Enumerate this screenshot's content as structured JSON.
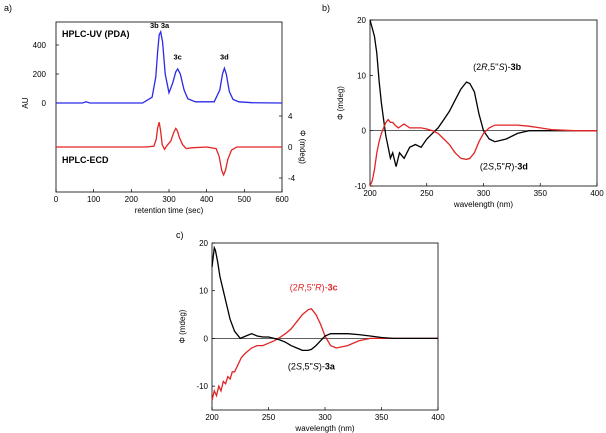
{
  "figure": {
    "panel_labels": [
      "a)",
      "b)",
      "c)"
    ]
  },
  "chart_data": [
    {
      "id": "a",
      "type": "line",
      "title_top": "HPLC-UV (PDA)",
      "title_bottom": "HPLC-ECD",
      "xlabel": "retention time (sec)",
      "ylabel_left": "AU",
      "ylabel_right": "Φ (mdeg)",
      "xlim": [
        0,
        600
      ],
      "xticks": [
        0,
        100,
        200,
        300,
        400,
        500,
        600
      ],
      "ylim_left": [
        0,
        500
      ],
      "yticks_left": [
        0,
        200,
        400
      ],
      "ylim_right": [
        -4,
        4
      ],
      "yticks_right": [
        4,
        0,
        -4
      ],
      "peak_labels": [
        {
          "text": "3b 3a",
          "x": 275,
          "y": 505
        },
        {
          "text": "3c",
          "x": 323,
          "y": 285
        },
        {
          "text": "3d",
          "x": 447,
          "y": 285
        }
      ],
      "series": [
        {
          "name": "HPLC-UV (PDA)",
          "color": "#2a2ae8",
          "axis": "left",
          "x": [
            0,
            70,
            80,
            90,
            230,
            255,
            265,
            270,
            274,
            278,
            283,
            290,
            300,
            310,
            318,
            323,
            330,
            340,
            350,
            370,
            420,
            435,
            442,
            447,
            452,
            460,
            470,
            485,
            520,
            600
          ],
          "y": [
            0,
            0,
            8,
            0,
            0,
            40,
            180,
            360,
            470,
            490,
            420,
            200,
            70,
            140,
            215,
            235,
            200,
            90,
            30,
            8,
            8,
            90,
            200,
            240,
            200,
            80,
            25,
            8,
            2,
            0
          ]
        },
        {
          "name": "HPLC-ECD",
          "color": "#e32424",
          "axis": "right",
          "x": [
            0,
            240,
            260,
            266,
            270,
            274,
            278,
            282,
            288,
            295,
            305,
            312,
            318,
            322,
            328,
            336,
            346,
            360,
            400,
            425,
            433,
            440,
            445,
            450,
            456,
            466,
            480,
            500,
            600
          ],
          "y": [
            0,
            0,
            0.1,
            1.0,
            2.5,
            3.2,
            2.0,
            0.3,
            -0.3,
            0.2,
            0.8,
            1.8,
            2.4,
            2.1,
            1.2,
            0.3,
            -0.2,
            -0.1,
            0,
            -0.2,
            -1.2,
            -3.0,
            -3.6,
            -3.0,
            -1.6,
            -0.4,
            0,
            0,
            0
          ]
        }
      ]
    },
    {
      "id": "b",
      "type": "line",
      "xlabel": "wavelength (nm)",
      "ylabel": "Φ (mdeg)",
      "xlim": [
        200,
        400
      ],
      "xticks": [
        200,
        250,
        300,
        350,
        400
      ],
      "ylim": [
        -10,
        20
      ],
      "yticks": [
        -10,
        0,
        10,
        20
      ],
      "annotations": [
        {
          "text": "(2R,5''S)-3b",
          "x": 312,
          "y": 11,
          "color": "#000000"
        },
        {
          "text": "(2S,5''R)-3d",
          "x": 318,
          "y": -7,
          "color": "#000000"
        }
      ],
      "series": [
        {
          "name": "(2R,5''S)-3b",
          "color": "#000000",
          "x": [
            200,
            202,
            204,
            206,
            208,
            210,
            212,
            214,
            216,
            218,
            220,
            223,
            226,
            230,
            235,
            240,
            245,
            250,
            255,
            260,
            265,
            270,
            275,
            280,
            285,
            288,
            292,
            296,
            300,
            305,
            310,
            320,
            330,
            340,
            350,
            360,
            380,
            400
          ],
          "y": [
            20,
            18.5,
            17,
            14,
            9,
            5,
            2,
            -1,
            -3,
            -5,
            -4,
            -6.5,
            -4,
            -5,
            -3,
            -2.5,
            -3,
            -1.5,
            -0.5,
            0.5,
            2,
            3.5,
            5.5,
            7.5,
            8.8,
            8.5,
            7,
            3,
            0,
            -1.5,
            -2,
            -1.5,
            -0.5,
            0,
            0,
            0,
            0,
            0
          ]
        },
        {
          "name": "(2S,5''R)-3d",
          "color": "#e32424",
          "x": [
            200,
            202,
            204,
            206,
            208,
            210,
            212,
            214,
            216,
            218,
            220,
            222,
            225,
            230,
            235,
            240,
            245,
            250,
            255,
            260,
            265,
            270,
            275,
            280,
            285,
            288,
            292,
            296,
            300,
            305,
            310,
            320,
            330,
            340,
            350,
            360,
            380,
            400
          ],
          "y": [
            -10,
            -9,
            -7,
            -4,
            -2,
            -0.5,
            0.5,
            1.5,
            2,
            1.5,
            1.5,
            1,
            0.5,
            1.2,
            0.5,
            0.5,
            0.5,
            0.3,
            0,
            -0.5,
            -1.5,
            -2.5,
            -4,
            -5,
            -5.2,
            -5,
            -4,
            -2,
            -0.5,
            0.5,
            1,
            1,
            1,
            0.8,
            0.5,
            0.2,
            0,
            0
          ]
        }
      ]
    },
    {
      "id": "c",
      "type": "line",
      "xlabel": "wavelength (nm)",
      "ylabel": "Φ (mdeg)",
      "xlim": [
        200,
        400
      ],
      "xticks": [
        200,
        250,
        300,
        350,
        400
      ],
      "ylim": [
        -15,
        20
      ],
      "yticks": [
        -10,
        0,
        10,
        20
      ],
      "annotations": [
        {
          "text": "(2R,5''R)-3c",
          "x": 290,
          "y": 10,
          "color": "#e32424"
        },
        {
          "text": "(2S,5''S)-3a",
          "x": 288,
          "y": -6.5,
          "color": "#000000"
        }
      ],
      "series": [
        {
          "name": "(2R,5''R)-3c",
          "color": "#e32424",
          "x": [
            200,
            202,
            204,
            206,
            208,
            210,
            212,
            214,
            216,
            218,
            220,
            223,
            226,
            230,
            235,
            240,
            245,
            250,
            255,
            260,
            265,
            270,
            275,
            280,
            285,
            288,
            292,
            296,
            300,
            305,
            310,
            320,
            330,
            340,
            350,
            360,
            380,
            400
          ],
          "y": [
            -13,
            -11,
            -12,
            -10,
            -11,
            -9,
            -9.5,
            -8,
            -8.5,
            -7,
            -7,
            -5.5,
            -4,
            -3,
            -2,
            -1.5,
            -1.5,
            -1,
            -0.5,
            0.2,
            1,
            2,
            3.5,
            5,
            6,
            6.2,
            5,
            3,
            0.5,
            -1.5,
            -2,
            -1.5,
            -0.5,
            0,
            0,
            0,
            0,
            0
          ]
        },
        {
          "name": "(2S,5''S)-3a",
          "color": "#000000",
          "x": [
            200,
            202,
            203,
            205,
            207,
            210,
            213,
            216,
            220,
            225,
            230,
            235,
            240,
            245,
            250,
            255,
            260,
            265,
            270,
            275,
            280,
            285,
            288,
            292,
            296,
            300,
            305,
            310,
            320,
            330,
            340,
            350,
            360,
            380,
            400
          ],
          "y": [
            15,
            19,
            18.5,
            16,
            13,
            10,
            7,
            4,
            1.5,
            0,
            0.5,
            1,
            0.5,
            0.3,
            0.3,
            0,
            -0.3,
            -0.8,
            -1.5,
            -2,
            -2.5,
            -2.5,
            -2.3,
            -1.5,
            -0.5,
            0.5,
            1,
            1,
            1,
            0.8,
            0.5,
            0.2,
            0,
            0,
            0
          ]
        }
      ]
    }
  ]
}
